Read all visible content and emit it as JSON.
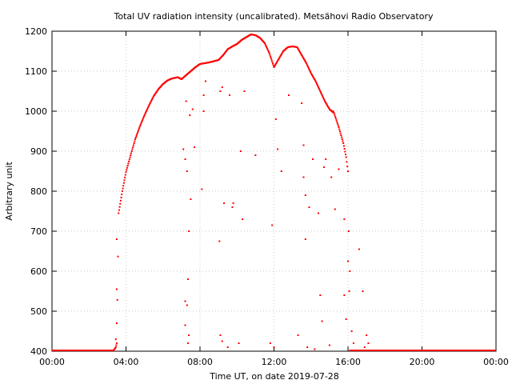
{
  "chart_data": {
    "type": "scatter",
    "title": "Total UV radiation intensity (uncalibrated). Metsähovi Radio Observatory",
    "xlabel": "Time UT, on date 2019-07-28",
    "ylabel": "Arbitrary unit",
    "x_unit": "hours UT",
    "xlim": [
      0,
      24
    ],
    "ylim": [
      400,
      1200
    ],
    "grid": true,
    "x_ticks": [
      {
        "value": 0,
        "label": "00:00"
      },
      {
        "value": 4,
        "label": "04:00"
      },
      {
        "value": 8,
        "label": "08:00"
      },
      {
        "value": 12,
        "label": "12:00"
      },
      {
        "value": 16,
        "label": "16:00"
      },
      {
        "value": 20,
        "label": "20:00"
      },
      {
        "value": 24,
        "label": "00:00"
      }
    ],
    "y_ticks": [
      400,
      500,
      600,
      700,
      800,
      900,
      1000,
      1100,
      1200
    ],
    "point_color": "#ff0000",
    "series": [
      {
        "profile": [
          [
            0.0,
            400
          ],
          [
            3.3,
            400
          ],
          [
            3.45,
            410
          ],
          [
            3.5,
            420
          ],
          [
            3.6,
            745
          ],
          [
            3.8,
            800
          ],
          [
            4.0,
            848
          ],
          [
            4.25,
            890
          ],
          [
            4.5,
            930
          ],
          [
            4.75,
            962
          ],
          [
            5.0,
            990
          ],
          [
            5.25,
            1015
          ],
          [
            5.5,
            1038
          ],
          [
            5.75,
            1055
          ],
          [
            6.0,
            1068
          ],
          [
            6.25,
            1077
          ],
          [
            6.5,
            1082
          ],
          [
            6.8,
            1085
          ],
          [
            7.0,
            1080
          ],
          [
            7.25,
            1090
          ],
          [
            7.5,
            1100
          ],
          [
            7.75,
            1110
          ],
          [
            8.0,
            1118
          ],
          [
            8.5,
            1122
          ],
          [
            9.0,
            1128
          ],
          [
            9.25,
            1140
          ],
          [
            9.5,
            1155
          ],
          [
            9.75,
            1162
          ],
          [
            10.0,
            1168
          ],
          [
            10.25,
            1178
          ],
          [
            10.5,
            1185
          ],
          [
            10.75,
            1192
          ],
          [
            11.0,
            1190
          ],
          [
            11.25,
            1183
          ],
          [
            11.5,
            1170
          ],
          [
            11.75,
            1145
          ],
          [
            12.0,
            1110
          ],
          [
            12.25,
            1130
          ],
          [
            12.5,
            1150
          ],
          [
            12.75,
            1160
          ],
          [
            13.0,
            1162
          ],
          [
            13.25,
            1160
          ],
          [
            13.5,
            1140
          ],
          [
            13.75,
            1120
          ],
          [
            14.0,
            1095
          ],
          [
            14.25,
            1075
          ],
          [
            14.5,
            1050
          ],
          [
            14.75,
            1025
          ],
          [
            15.0,
            1005
          ],
          [
            15.25,
            995
          ],
          [
            15.5,
            960
          ],
          [
            15.75,
            920
          ],
          [
            15.9,
            885
          ],
          [
            16.0,
            850
          ],
          [
            16.1,
            400
          ],
          [
            18.0,
            400
          ],
          [
            24.0,
            400
          ]
        ],
        "scatter_points": [
          [
            3.5,
            555
          ],
          [
            3.5,
            680
          ],
          [
            3.5,
            470
          ],
          [
            3.45,
            430
          ],
          [
            7.1,
            905
          ],
          [
            7.2,
            880
          ],
          [
            7.25,
            1025
          ],
          [
            7.3,
            850
          ],
          [
            7.35,
            580
          ],
          [
            7.4,
            700
          ],
          [
            7.45,
            990
          ],
          [
            7.5,
            780
          ],
          [
            7.2,
            525
          ],
          [
            7.3,
            515
          ],
          [
            7.2,
            465
          ],
          [
            7.35,
            420
          ],
          [
            7.4,
            440
          ],
          [
            7.6,
            1005
          ],
          [
            7.7,
            910
          ],
          [
            8.1,
            805
          ],
          [
            8.2,
            1040
          ],
          [
            8.2,
            1000
          ],
          [
            8.3,
            1075
          ],
          [
            9.05,
            675
          ],
          [
            9.1,
            1050
          ],
          [
            9.2,
            1060
          ],
          [
            9.3,
            770
          ],
          [
            9.6,
            1040
          ],
          [
            9.75,
            760
          ],
          [
            9.8,
            770
          ],
          [
            10.2,
            900
          ],
          [
            10.3,
            730
          ],
          [
            10.4,
            1050
          ],
          [
            11.0,
            890
          ],
          [
            11.9,
            715
          ],
          [
            12.1,
            980
          ],
          [
            12.2,
            905
          ],
          [
            12.4,
            850
          ],
          [
            12.8,
            1040
          ],
          [
            13.3,
            440
          ],
          [
            13.5,
            1020
          ],
          [
            13.6,
            915
          ],
          [
            13.6,
            835
          ],
          [
            13.7,
            790
          ],
          [
            13.7,
            680
          ],
          [
            13.9,
            760
          ],
          [
            14.1,
            880
          ],
          [
            14.4,
            745
          ],
          [
            14.5,
            540
          ],
          [
            14.6,
            475
          ],
          [
            14.7,
            860
          ],
          [
            14.8,
            880
          ],
          [
            15.1,
            835
          ],
          [
            15.2,
            1000
          ],
          [
            15.3,
            755
          ],
          [
            15.5,
            855
          ],
          [
            15.8,
            730
          ],
          [
            15.8,
            540
          ],
          [
            15.9,
            480
          ],
          [
            16.0,
            625
          ],
          [
            16.1,
            600
          ],
          [
            16.2,
            450
          ],
          [
            16.3,
            420
          ],
          [
            16.6,
            655
          ],
          [
            16.8,
            550
          ],
          [
            17.0,
            440
          ],
          [
            17.1,
            420
          ],
          [
            9.1,
            440
          ],
          [
            9.2,
            425
          ],
          [
            9.5,
            410
          ],
          [
            10.1,
            420
          ],
          [
            11.8,
            420
          ],
          [
            12.0,
            410
          ],
          [
            13.8,
            410
          ],
          [
            14.2,
            405
          ],
          [
            15.0,
            415
          ],
          [
            16.9,
            410
          ]
        ]
      }
    ]
  }
}
